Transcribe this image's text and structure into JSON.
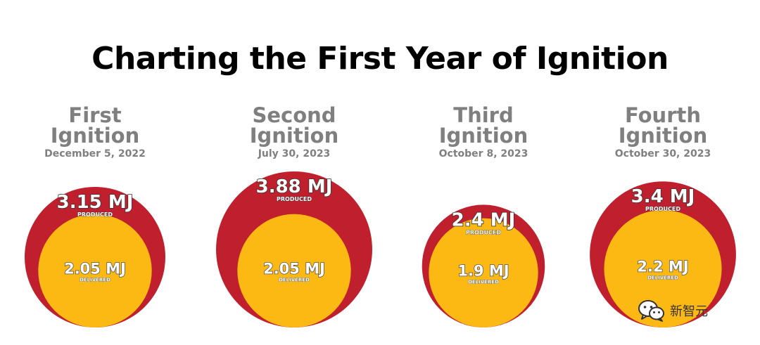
{
  "title": "Charting the First Year of Ignition",
  "colors": {
    "produced": "#c0202e",
    "delivered": "#fdb913",
    "label_gray": "#7f7f7f"
  },
  "watermark": {
    "text": "新智元",
    "icon": "wechat-icon"
  },
  "chart_data": {
    "type": "nested-circles",
    "title": "Charting the First Year of Ignition",
    "units": "MJ",
    "series": [
      {
        "name": "PRODUCED",
        "values": [
          3.15,
          3.88,
          2.4,
          3.4
        ]
      },
      {
        "name": "DELIVERED",
        "values": [
          2.05,
          2.05,
          1.9,
          2.2
        ]
      }
    ],
    "items": [
      {
        "name_line1": "First",
        "name_line2": "Ignition",
        "date": "December 5, 2022",
        "produced": 3.15,
        "produced_label": "3.15 MJ",
        "delivered": 2.05,
        "delivered_label": "2.05 MJ"
      },
      {
        "name_line1": "Second",
        "name_line2": "Ignition",
        "date": "July 30, 2023",
        "produced": 3.88,
        "produced_label": "3.88 MJ",
        "delivered": 2.05,
        "delivered_label": "2.05 MJ"
      },
      {
        "name_line1": "Third",
        "name_line2": "Ignition",
        "date": "October 8, 2023",
        "produced": 2.4,
        "produced_label": "2.4 MJ",
        "delivered": 1.9,
        "delivered_label": "1.9 MJ"
      },
      {
        "name_line1": "Fourth",
        "name_line2": "Ignition",
        "date": "October 30, 2023",
        "produced": 3.4,
        "produced_label": "3.4 MJ",
        "delivered": 2.2,
        "delivered_label": "2.2 MJ"
      }
    ],
    "produced_caption": "PRODUCED",
    "delivered_caption": "DELIVERED"
  }
}
